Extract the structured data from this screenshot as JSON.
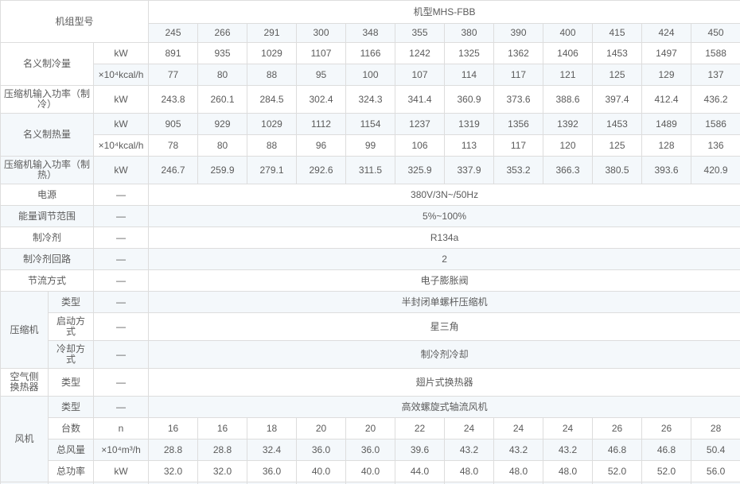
{
  "colors": {
    "stripe": "#f4f8fb",
    "border": "#dddddd",
    "text": "#5b5b5b"
  },
  "table": {
    "header": {
      "corner": "机组型号",
      "series": "机型MHS-FBB",
      "models": [
        "245",
        "266",
        "291",
        "300",
        "348",
        "355",
        "380",
        "390",
        "400",
        "415",
        "424",
        "450"
      ]
    },
    "rows": [
      {
        "label": {
          "text": "名义制冷量",
          "colspan": 2,
          "rowspan": 2
        },
        "unit": "kW",
        "values": [
          "891",
          "935",
          "1029",
          "1107",
          "1166",
          "1242",
          "1325",
          "1362",
          "1406",
          "1453",
          "1497",
          "1588"
        ]
      },
      {
        "unit": "×10⁴kcal/h",
        "values": [
          "77",
          "80",
          "88",
          "95",
          "100",
          "107",
          "114",
          "117",
          "121",
          "125",
          "129",
          "137"
        ]
      },
      {
        "label": {
          "text": "压缩机输入功率（制冷）",
          "colspan": 2
        },
        "unit": "kW",
        "values": [
          "243.8",
          "260.1",
          "284.5",
          "302.4",
          "324.3",
          "341.4",
          "360.9",
          "373.6",
          "388.6",
          "397.4",
          "412.4",
          "436.2"
        ]
      },
      {
        "label": {
          "text": "名义制热量",
          "colspan": 2,
          "rowspan": 2
        },
        "unit": "kW",
        "values": [
          "905",
          "929",
          "1029",
          "1112",
          "1154",
          "1237",
          "1319",
          "1356",
          "1392",
          "1453",
          "1489",
          "1586"
        ]
      },
      {
        "unit": "×10⁴kcal/h",
        "values": [
          "78",
          "80",
          "88",
          "96",
          "99",
          "106",
          "113",
          "117",
          "120",
          "125",
          "128",
          "136"
        ]
      },
      {
        "label": {
          "text": "压缩机输入功率（制热）",
          "colspan": 2
        },
        "unit": "kW",
        "values": [
          "246.7",
          "259.9",
          "279.1",
          "292.6",
          "311.5",
          "325.9",
          "337.9",
          "353.2",
          "366.3",
          "380.5",
          "393.6",
          "420.9"
        ]
      },
      {
        "label": {
          "text": "电源",
          "colspan": 2
        },
        "unit": "—",
        "span": "380V/3N~/50Hz"
      },
      {
        "label": {
          "text": "能量调节范围",
          "colspan": 2
        },
        "unit": "—",
        "span": "5%~100%"
      },
      {
        "label": {
          "text": "制冷剂",
          "colspan": 2
        },
        "unit": "—",
        "span": "R134a"
      },
      {
        "label": {
          "text": "制冷剂回路",
          "colspan": 2
        },
        "unit": "—",
        "span": "2"
      },
      {
        "label": {
          "text": "节流方式",
          "colspan": 2
        },
        "unit": "—",
        "span": "电子膨胀阀"
      },
      {
        "group": {
          "text": "压缩机",
          "rowspan": 3
        },
        "label": {
          "text": "类型"
        },
        "unit": "—",
        "span": "半封闭单螺杆压缩机"
      },
      {
        "label": {
          "text": "启动方式"
        },
        "unit": "—",
        "span": "星三角"
      },
      {
        "label": {
          "text": "冷却方式"
        },
        "unit": "—",
        "span": "制冷剂冷却"
      },
      {
        "group": {
          "text": "空气侧换热器"
        },
        "label": {
          "text": "类型"
        },
        "unit": "—",
        "span": "翅片式换热器"
      },
      {
        "group": {
          "text": "风机",
          "rowspan": 4
        },
        "label": {
          "text": "类型"
        },
        "unit": "—",
        "span": "高效螺旋式轴流风机"
      },
      {
        "label": {
          "text": "台数"
        },
        "unit": "n",
        "values": [
          "16",
          "16",
          "18",
          "20",
          "20",
          "22",
          "24",
          "24",
          "24",
          "26",
          "26",
          "28"
        ]
      },
      {
        "label": {
          "text": "总风量"
        },
        "unit": "×10⁴m³/h",
        "values": [
          "28.8",
          "28.8",
          "32.4",
          "36.0",
          "36.0",
          "39.6",
          "43.2",
          "43.2",
          "43.2",
          "46.8",
          "46.8",
          "50.4"
        ]
      },
      {
        "label": {
          "text": "总功率"
        },
        "unit": "kW",
        "values": [
          "32.0",
          "32.0",
          "36.0",
          "40.0",
          "40.0",
          "44.0",
          "48.0",
          "48.0",
          "48.0",
          "52.0",
          "52.0",
          "56.0"
        ]
      },
      {
        "group": {
          "text": ""
        },
        "label": {
          "text": ""
        },
        "unit": "",
        "values": [
          "",
          "",
          "",
          "",
          "",
          "",
          "",
          "",
          "",
          "",
          "",
          ""
        ]
      }
    ]
  }
}
